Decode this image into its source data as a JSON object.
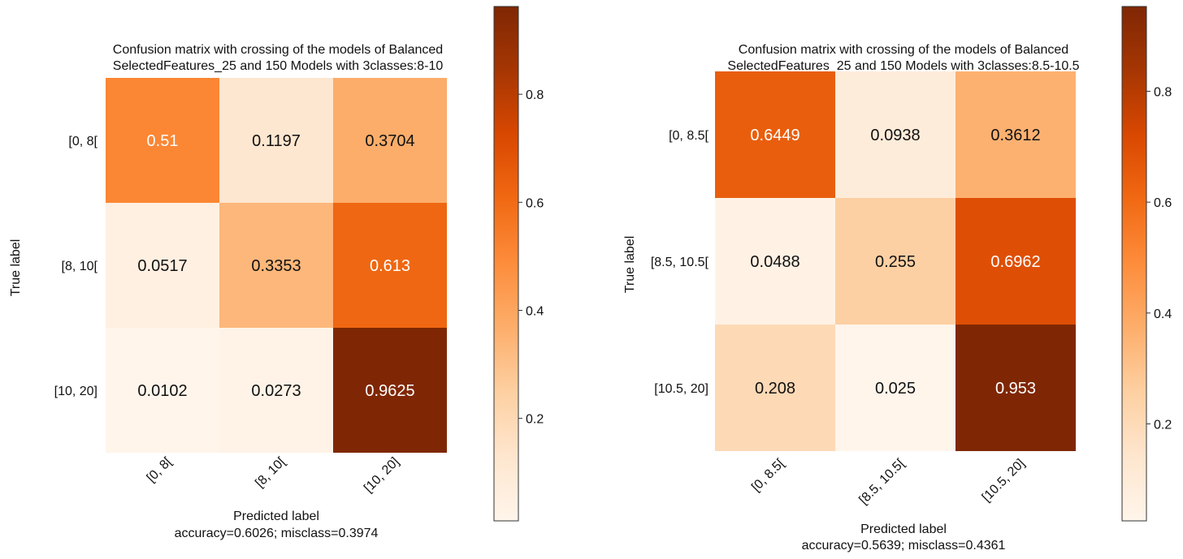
{
  "chart_data": [
    {
      "type": "heatmap",
      "title_lines": [
        "Confusion matrix with crossing of the models of Balanced",
        "SelectedFeatures_25 and 150 Models with 3classes:8-10"
      ],
      "ylabel": "True label",
      "xlabel": "Predicted label",
      "footer": "accuracy=0.6026; misclass=0.3974",
      "row_labels": [
        "[0, 8[",
        "[8, 10[",
        "[10, 20]"
      ],
      "col_labels": [
        "[0, 8[",
        "[8, 10[",
        "[10, 20]"
      ],
      "values": [
        [
          0.51,
          0.1197,
          0.3704
        ],
        [
          0.0517,
          0.3353,
          0.613
        ],
        [
          0.0102,
          0.0273,
          0.9625
        ]
      ],
      "cell_text": [
        [
          "0.51",
          "0.1197",
          "0.3704"
        ],
        [
          "0.0517",
          "0.3353",
          "0.613"
        ],
        [
          "0.0102",
          "0.0273",
          "0.9625"
        ]
      ],
      "colorbar_ticks": [
        "0.2",
        "0.4",
        "0.6",
        "0.8"
      ],
      "colorbar_tick_values": [
        0.2,
        0.4,
        0.6,
        0.8
      ],
      "vmin": 0.0102,
      "vmax": 0.9625
    },
    {
      "type": "heatmap",
      "title_lines": [
        "Confusion matrix with crossing of the models of Balanced",
        "SelectedFeatures_25 and 150 Models with 3classes:8.5-10.5"
      ],
      "ylabel": "True label",
      "xlabel": "Predicted label",
      "footer": "accuracy=0.5639; misclass=0.4361",
      "row_labels": [
        "[0, 8.5[",
        "[8.5, 10.5[",
        "[10.5, 20]"
      ],
      "col_labels": [
        "[0, 8.5[",
        "[8.5, 10.5[",
        "[10.5, 20]"
      ],
      "values": [
        [
          0.6449,
          0.0938,
          0.3612
        ],
        [
          0.0488,
          0.255,
          0.6962
        ],
        [
          0.208,
          0.025,
          0.953
        ]
      ],
      "cell_text": [
        [
          "0.6449",
          "0.0938",
          "0.3612"
        ],
        [
          "0.0488",
          "0.255",
          "0.6962"
        ],
        [
          "0.208",
          "0.025",
          "0.953"
        ]
      ],
      "colorbar_ticks": [
        "0.2",
        "0.4",
        "0.6",
        "0.8"
      ],
      "colorbar_tick_values": [
        0.2,
        0.4,
        0.6,
        0.8
      ],
      "vmin": 0.025,
      "vmax": 0.953
    }
  ],
  "colors": {
    "cmap": [
      "#fff5eb",
      "#fee6ce",
      "#fdd0a2",
      "#fdae6b",
      "#fd8d3c",
      "#f16913",
      "#d94801",
      "#a63603",
      "#7f2704"
    ],
    "text_dark": "#111111",
    "text_light": "#ffffff"
  }
}
